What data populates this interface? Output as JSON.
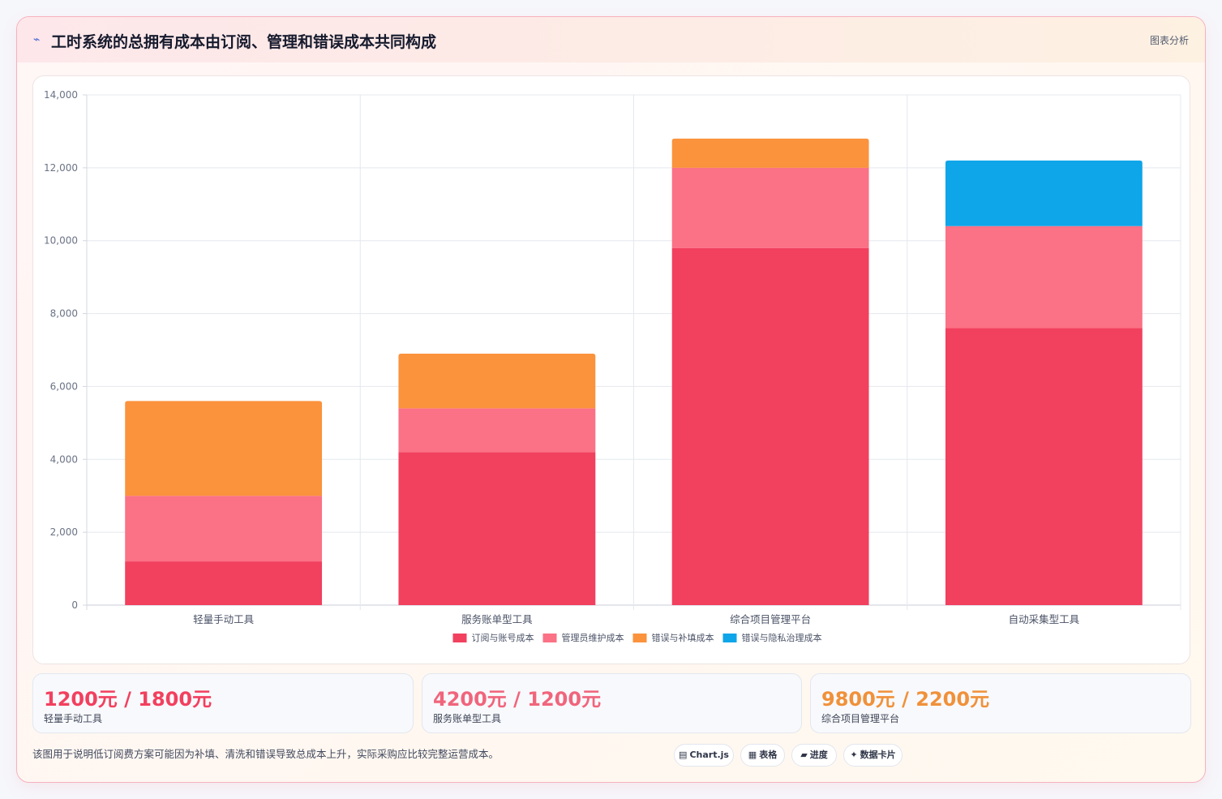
{
  "header": {
    "icon": "trend-line-icon",
    "title": "工时系统的总拥有成本由订阅、管理和错误成本共同构成",
    "tag": "图表分析"
  },
  "chart_data": {
    "type": "bar",
    "stacked": true,
    "categories": [
      "轻量手动工具",
      "服务账单型工具",
      "综合项目管理平台",
      "自动采集型工具"
    ],
    "series": [
      {
        "name": "订阅与账号成本",
        "color": "#f2405f",
        "values": [
          1200,
          4200,
          9800,
          7600
        ]
      },
      {
        "name": "管理员维护成本",
        "color": "#fb7185",
        "values": [
          1800,
          1200,
          2200,
          2800
        ]
      },
      {
        "name": "错误与补填成本",
        "color": "#fb923c",
        "values": [
          2600,
          1500,
          800,
          0
        ]
      },
      {
        "name": "错误与隐私治理成本",
        "color": "#0ea5e9",
        "values": [
          0,
          0,
          0,
          1800
        ]
      }
    ],
    "yticks": [
      "0",
      "2,000",
      "4,000",
      "6,000",
      "8,000",
      "10,000",
      "12,000",
      "14,000"
    ],
    "ylim": [
      0,
      14000
    ],
    "grid": true,
    "legend": "bottom"
  },
  "stats": [
    {
      "value": "1200元 / 1800元",
      "label": "轻量手动工具",
      "color": "#f2405f"
    },
    {
      "value": "4200元 / 1200元",
      "label": "服务账单型工具",
      "color": "#f0657c"
    },
    {
      "value": "9800元 / 2200元",
      "label": "综合项目管理平台",
      "color": "#f0913a"
    }
  ],
  "footer": {
    "note": "该图用于说明低订阅费方案可能因为补填、清洗和错误导致总成本上升，实际采购应比较完整运营成本。",
    "pills": [
      {
        "icon": "chart-icon",
        "glyph": "▤",
        "label": "Chart.js"
      },
      {
        "icon": "table-icon",
        "glyph": "▦",
        "label": "表格"
      },
      {
        "icon": "progress-icon",
        "glyph": "▰",
        "label": "进度"
      },
      {
        "icon": "sparkle-icon",
        "glyph": "✦",
        "label": "数据卡片"
      }
    ]
  }
}
